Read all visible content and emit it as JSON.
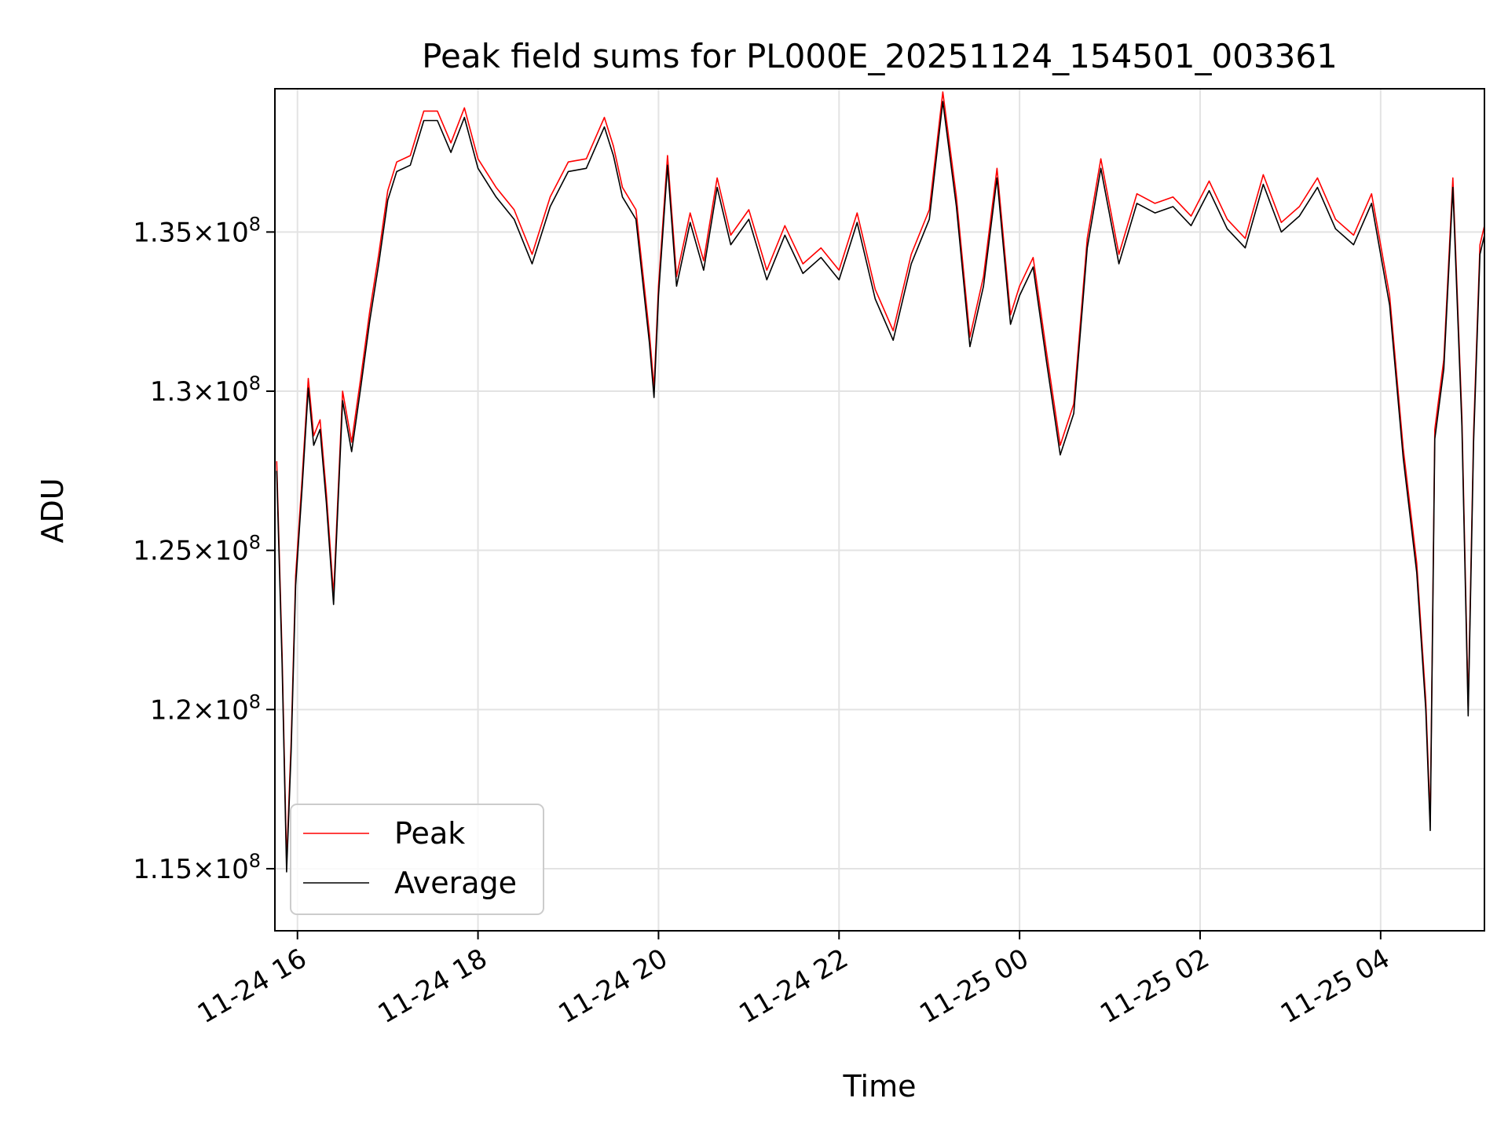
{
  "chart_data": {
    "type": "line",
    "title": "Peak field sums for PL000E_20251124_154501_003361",
    "xlabel": "Time",
    "ylabel": "ADU",
    "xlim_hours": [
      15.75,
      29.15
    ],
    "ylim": [
      113050000,
      139500000
    ],
    "grid": true,
    "legend_position": "lower-left",
    "x_ticks": [
      {
        "hour": 16,
        "label": "11-24 16"
      },
      {
        "hour": 18,
        "label": "11-24 18"
      },
      {
        "hour": 20,
        "label": "11-24 20"
      },
      {
        "hour": 22,
        "label": "11-24 22"
      },
      {
        "hour": 24,
        "label": "11-25 00"
      },
      {
        "hour": 26,
        "label": "11-25 02"
      },
      {
        "hour": 28,
        "label": "11-25 04"
      }
    ],
    "y_ticks": [
      {
        "value": 115000000,
        "mantissa": "1.15",
        "exponent": "8"
      },
      {
        "value": 120000000,
        "mantissa": "1.2",
        "exponent": "8"
      },
      {
        "value": 125000000,
        "mantissa": "1.25",
        "exponent": "8"
      },
      {
        "value": 130000000,
        "mantissa": "1.3",
        "exponent": "8"
      },
      {
        "value": 135000000,
        "mantissa": "1.35",
        "exponent": "8"
      }
    ],
    "times_note": "x values are hours since 2025-11-24 00:00 (24 = 11-25 00:00)",
    "series": [
      {
        "name": "Peak",
        "color": "#ff0000",
        "x": [
          15.77,
          15.83,
          15.88,
          15.93,
          15.98,
          16.05,
          16.12,
          16.18,
          16.25,
          16.32,
          16.4,
          16.5,
          16.6,
          16.7,
          16.8,
          16.9,
          17.0,
          17.1,
          17.25,
          17.4,
          17.55,
          17.7,
          17.85,
          18.0,
          18.2,
          18.4,
          18.6,
          18.8,
          19.0,
          19.2,
          19.4,
          19.5,
          19.6,
          19.75,
          19.9,
          19.95,
          20.0,
          20.1,
          20.2,
          20.35,
          20.5,
          20.65,
          20.8,
          21.0,
          21.2,
          21.4,
          21.6,
          21.8,
          22.0,
          22.2,
          22.4,
          22.6,
          22.8,
          23.0,
          23.15,
          23.3,
          23.45,
          23.6,
          23.75,
          23.9,
          24.0,
          24.15,
          24.3,
          24.45,
          24.6,
          24.75,
          24.9,
          25.1,
          25.3,
          25.5,
          25.7,
          25.9,
          26.1,
          26.3,
          26.5,
          26.7,
          26.9,
          27.1,
          27.3,
          27.5,
          27.7,
          27.9,
          28.1,
          28.25,
          28.4,
          28.5,
          28.55,
          28.6,
          28.7,
          28.8,
          28.9,
          28.97,
          29.03,
          29.1,
          29.15
        ],
        "y": [
          127800000,
          121700000,
          115200000,
          119000000,
          124200000,
          127200000,
          130400000,
          128600000,
          129100000,
          126800000,
          123600000,
          130000000,
          128400000,
          130400000,
          132500000,
          134300000,
          136300000,
          137200000,
          137400000,
          138800000,
          138800000,
          137800000,
          138900000,
          137300000,
          136400000,
          135700000,
          134300000,
          136100000,
          137200000,
          137300000,
          138600000,
          137700000,
          136400000,
          135700000,
          131800000,
          130100000,
          133300000,
          137400000,
          133600000,
          135600000,
          134100000,
          136700000,
          134900000,
          135700000,
          133800000,
          135200000,
          134000000,
          134500000,
          133800000,
          135600000,
          133200000,
          131900000,
          134300000,
          135700000,
          139400000,
          136100000,
          131700000,
          133600000,
          137000000,
          132400000,
          133300000,
          134200000,
          131200000,
          128300000,
          129600000,
          134800000,
          137300000,
          134300000,
          136200000,
          135900000,
          136100000,
          135500000,
          136600000,
          135400000,
          134800000,
          136800000,
          135300000,
          135800000,
          136700000,
          135400000,
          134900000,
          136200000,
          133000000,
          128200000,
          124600000,
          120300000,
          116500000,
          128800000,
          131000000,
          136700000,
          129200000,
          120100000,
          128700000,
          134600000,
          135200000
        ]
      },
      {
        "name": "Average",
        "color": "#000000",
        "x": [
          15.77,
          15.83,
          15.88,
          15.93,
          15.98,
          16.05,
          16.12,
          16.18,
          16.25,
          16.32,
          16.4,
          16.5,
          16.6,
          16.7,
          16.8,
          16.9,
          17.0,
          17.1,
          17.25,
          17.4,
          17.55,
          17.7,
          17.85,
          18.0,
          18.2,
          18.4,
          18.6,
          18.8,
          19.0,
          19.2,
          19.4,
          19.5,
          19.6,
          19.75,
          19.9,
          19.95,
          20.0,
          20.1,
          20.2,
          20.35,
          20.5,
          20.65,
          20.8,
          21.0,
          21.2,
          21.4,
          21.6,
          21.8,
          22.0,
          22.2,
          22.4,
          22.6,
          22.8,
          23.0,
          23.15,
          23.3,
          23.45,
          23.6,
          23.75,
          23.9,
          24.0,
          24.15,
          24.3,
          24.45,
          24.6,
          24.75,
          24.9,
          25.1,
          25.3,
          25.5,
          25.7,
          25.9,
          26.1,
          26.3,
          26.5,
          26.7,
          26.9,
          27.1,
          27.3,
          27.5,
          27.7,
          27.9,
          28.1,
          28.25,
          28.4,
          28.5,
          28.55,
          28.6,
          28.7,
          28.8,
          28.9,
          28.97,
          29.03,
          29.1,
          29.15
        ],
        "y": [
          127500000,
          121400000,
          114900000,
          118700000,
          123900000,
          126900000,
          130100000,
          128300000,
          128800000,
          126500000,
          123300000,
          129700000,
          128100000,
          130100000,
          132200000,
          134000000,
          136000000,
          136900000,
          137100000,
          138500000,
          138500000,
          137500000,
          138600000,
          137000000,
          136100000,
          135400000,
          134000000,
          135800000,
          136900000,
          137000000,
          138300000,
          137400000,
          136100000,
          135400000,
          131500000,
          129800000,
          133000000,
          137100000,
          133300000,
          135300000,
          133800000,
          136400000,
          134600000,
          135400000,
          133500000,
          134900000,
          133700000,
          134200000,
          133500000,
          135300000,
          132900000,
          131600000,
          134000000,
          135400000,
          139100000,
          135800000,
          131400000,
          133300000,
          136700000,
          132100000,
          133000000,
          133900000,
          130900000,
          128000000,
          129300000,
          134500000,
          137000000,
          134000000,
          135900000,
          135600000,
          135800000,
          135200000,
          136300000,
          135100000,
          134500000,
          136500000,
          135000000,
          135500000,
          136400000,
          135100000,
          134600000,
          135900000,
          132700000,
          127900000,
          124300000,
          120000000,
          116200000,
          128500000,
          130700000,
          136400000,
          128900000,
          119800000,
          128400000,
          134300000,
          134900000
        ]
      }
    ]
  }
}
